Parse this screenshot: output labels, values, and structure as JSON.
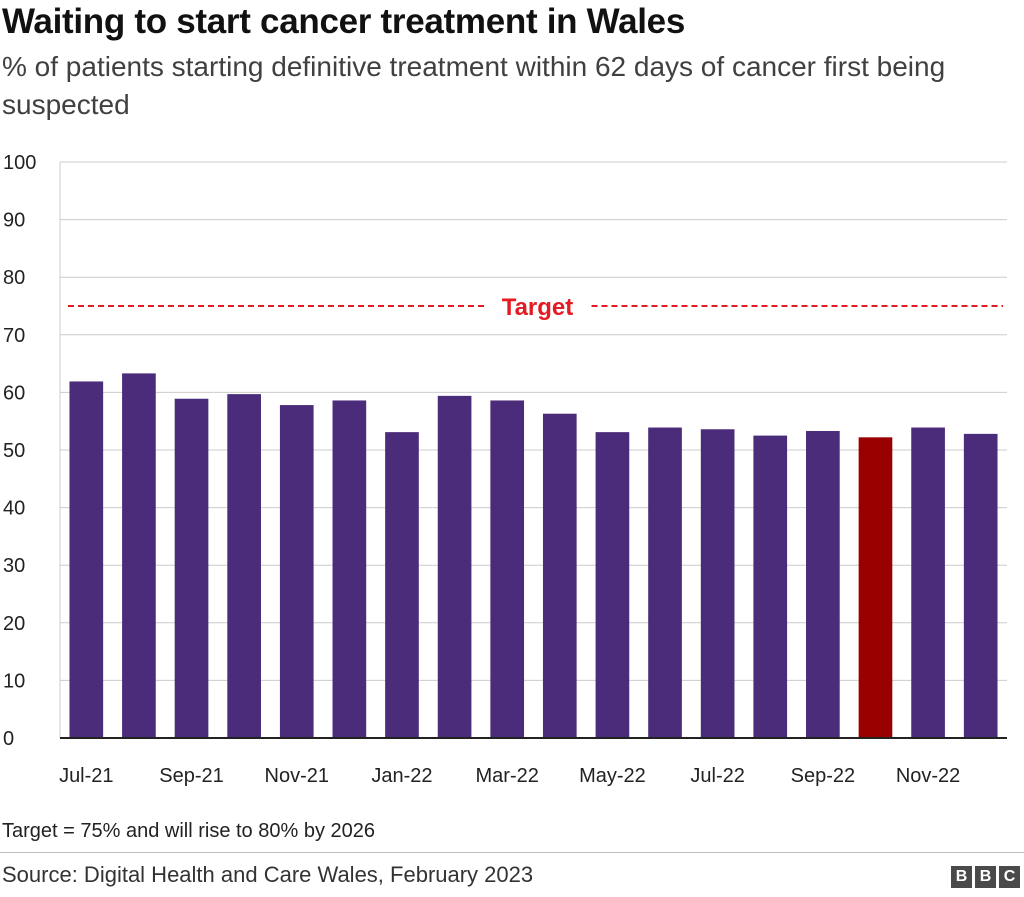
{
  "title": "Waiting to start cancer treatment in Wales",
  "subtitle": "% of patients starting definitive treatment within 62 days of cancer first being suspected",
  "note": "Target = 75% and will rise to 80% by 2026",
  "source": "Source: Digital Health and Care Wales, February 2023",
  "logo_letters": [
    "B",
    "B",
    "C"
  ],
  "colors": {
    "bar": "#4b2c7a",
    "highlight": "#990000",
    "target": "#e31b23",
    "grid": "#cccccc"
  },
  "chart_data": {
    "type": "bar",
    "categories": [
      "Jul-21",
      "Aug-21",
      "Sep-21",
      "Oct-21",
      "Nov-21",
      "Dec-21",
      "Jan-22",
      "Feb-22",
      "Mar-22",
      "Apr-22",
      "May-22",
      "Jun-22",
      "Jul-22",
      "Aug-22",
      "Sep-22",
      "Oct-22",
      "Nov-22",
      "Dec-22"
    ],
    "x_tick_labels": [
      "Jul-21",
      "",
      "Sep-21",
      "",
      "Nov-21",
      "",
      "Jan-22",
      "",
      "Mar-22",
      "",
      "May-22",
      "",
      "Jul-22",
      "",
      "Sep-22",
      "",
      "Nov-22",
      ""
    ],
    "values": [
      61.9,
      63.3,
      58.9,
      59.7,
      57.8,
      58.6,
      53.1,
      59.4,
      58.6,
      56.3,
      53.1,
      53.9,
      53.6,
      52.5,
      53.3,
      52.2,
      53.9,
      52.8
    ],
    "highlight_index": 15,
    "ylim": [
      0,
      100
    ],
    "y_ticks": [
      0,
      10,
      20,
      30,
      40,
      50,
      60,
      70,
      80,
      90,
      100
    ],
    "target": {
      "value": 75,
      "label": "Target"
    },
    "grid": true,
    "xlabel": "",
    "ylabel": ""
  }
}
